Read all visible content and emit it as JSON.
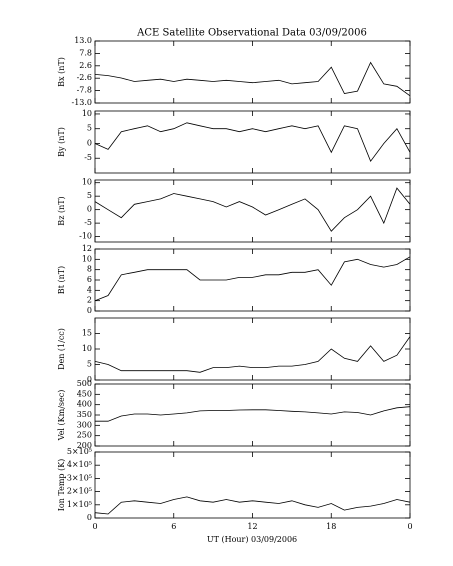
{
  "chart_data": [
    {
      "type": "line",
      "title": "ACE Satellite Observational Data   03/09/2006",
      "ylabel": "Bx (nT)",
      "x": [
        0,
        1,
        2,
        3,
        4,
        5,
        6,
        7,
        8,
        9,
        10,
        11,
        12,
        13,
        14,
        15,
        16,
        17,
        18,
        19,
        20,
        21,
        22,
        23,
        24
      ],
      "values": [
        -1,
        -1.5,
        -2.5,
        -4,
        -3.5,
        -3,
        -4,
        -3,
        -3.5,
        -4,
        -3.5,
        -4,
        -4.5,
        -4,
        -3.5,
        -5,
        -4.5,
        -4,
        2,
        -9,
        -8,
        4,
        -5,
        -6,
        -10
      ],
      "ylim": [
        -13,
        13
      ],
      "yticks": [
        {
          "value": -13,
          "label": "-13.0"
        },
        -7.8,
        -2.6,
        2.6,
        7.8,
        {
          "value": 13,
          "label": "13.0"
        }
      ]
    },
    {
      "type": "line",
      "ylabel": "By (nT)",
      "x": [
        0,
        1,
        2,
        3,
        4,
        5,
        6,
        7,
        8,
        9,
        10,
        11,
        12,
        13,
        14,
        15,
        16,
        17,
        18,
        19,
        20,
        21,
        22,
        23,
        24
      ],
      "values": [
        0,
        -2,
        4,
        5,
        6,
        4,
        5,
        7,
        6,
        5,
        5,
        4,
        5,
        4,
        5,
        6,
        5,
        6,
        -3,
        6,
        5,
        -6,
        0,
        5,
        -3
      ],
      "ylim": [
        -10,
        11
      ],
      "yticks": [
        -5,
        0,
        5,
        10
      ]
    },
    {
      "type": "line",
      "ylabel": "Bz (nT)",
      "x": [
        0,
        1,
        2,
        3,
        4,
        5,
        6,
        7,
        8,
        9,
        10,
        11,
        12,
        13,
        14,
        15,
        16,
        17,
        18,
        19,
        20,
        21,
        22,
        23,
        24
      ],
      "values": [
        3,
        0,
        -3,
        2,
        3,
        4,
        6,
        5,
        4,
        3,
        1,
        3,
        1,
        -2,
        0,
        2,
        4,
        0,
        -8,
        -3,
        0,
        5,
        -5,
        8,
        2
      ],
      "ylim": [
        -12,
        11
      ],
      "yticks": [
        -10,
        -5,
        0,
        5,
        10
      ]
    },
    {
      "type": "line",
      "ylabel": "Bt (nT)",
      "x": [
        0,
        1,
        2,
        3,
        4,
        5,
        6,
        7,
        8,
        9,
        10,
        11,
        12,
        13,
        14,
        15,
        16,
        17,
        18,
        19,
        20,
        21,
        22,
        23,
        24
      ],
      "values": [
        2,
        3,
        7,
        7.5,
        8,
        8,
        8,
        8,
        6,
        6,
        6,
        6.5,
        6.5,
        7,
        7,
        7.5,
        7.5,
        8,
        5,
        9.5,
        10,
        9,
        8.5,
        9,
        10.5
      ],
      "ylim": [
        0,
        12
      ],
      "yticks": [
        0,
        2,
        4,
        6,
        8,
        10,
        12
      ]
    },
    {
      "type": "line",
      "ylabel": "Den (1/cc)",
      "x": [
        0,
        1,
        2,
        3,
        4,
        5,
        6,
        7,
        8,
        9,
        10,
        11,
        12,
        13,
        14,
        15,
        16,
        17,
        18,
        19,
        20,
        21,
        22,
        23,
        24
      ],
      "values": [
        6,
        5,
        3,
        3,
        3,
        3,
        3,
        3,
        2.5,
        4,
        4,
        4.5,
        4,
        4,
        4.5,
        4.5,
        5,
        6,
        10,
        7,
        6,
        11,
        6,
        8,
        14
      ],
      "ylim": [
        0,
        20
      ],
      "yticks": [
        0,
        5,
        10,
        15
      ]
    },
    {
      "type": "line",
      "ylabel": "Vel (Km/sec)",
      "x": [
        0,
        1,
        2,
        3,
        4,
        5,
        6,
        7,
        8,
        9,
        10,
        11,
        12,
        13,
        14,
        15,
        16,
        17,
        18,
        19,
        20,
        21,
        22,
        23,
        24
      ],
      "values": [
        320,
        320,
        345,
        355,
        355,
        350,
        355,
        360,
        370,
        372,
        372,
        374,
        375,
        375,
        372,
        368,
        365,
        360,
        355,
        365,
        362,
        350,
        370,
        385,
        390
      ],
      "ylim": [
        200,
        500
      ],
      "yticks": [
        200,
        250,
        300,
        350,
        400,
        450,
        500
      ]
    },
    {
      "type": "line",
      "ylabel": "Ion Temp (K)",
      "xlabel": "UT (Hour)   03/09/2006",
      "x": [
        0,
        1,
        2,
        3,
        4,
        5,
        6,
        7,
        8,
        9,
        10,
        11,
        12,
        13,
        14,
        15,
        16,
        17,
        18,
        19,
        20,
        21,
        22,
        23,
        24
      ],
      "values": [
        40000,
        30000,
        120000,
        130000,
        120000,
        110000,
        140000,
        160000,
        130000,
        120000,
        140000,
        120000,
        130000,
        120000,
        110000,
        130000,
        100000,
        80000,
        110000,
        60000,
        80000,
        90000,
        110000,
        140000,
        120000
      ],
      "ylim": [
        0,
        500000
      ],
      "yticks": [
        0,
        {
          "value": 100000,
          "label": "1×10⁵"
        },
        {
          "value": 200000,
          "label": "2×10⁵"
        },
        {
          "value": 300000,
          "label": "3×10⁵"
        },
        {
          "value": 400000,
          "label": "4×10⁵"
        },
        {
          "value": 500000,
          "label": "5×10⁵"
        }
      ],
      "xlim": [
        0,
        24
      ],
      "xticks": [
        0,
        6,
        12,
        18,
        {
          "value": 24,
          "label": "0"
        }
      ]
    }
  ]
}
